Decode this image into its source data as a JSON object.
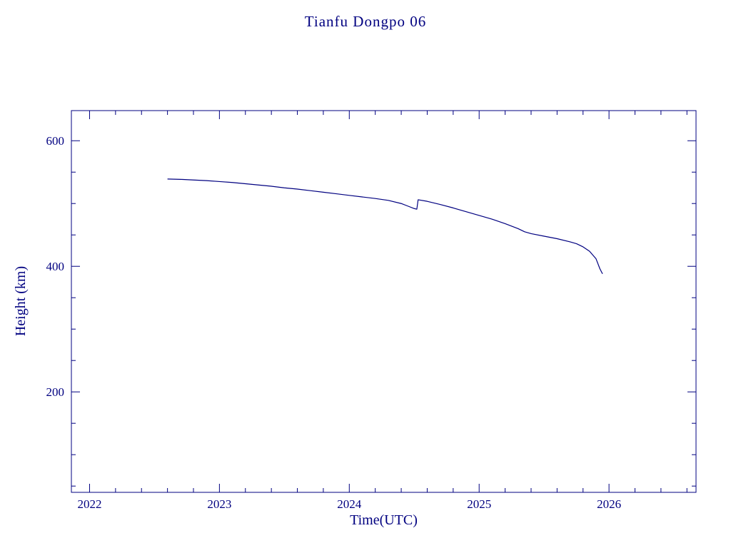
{
  "chart_data": {
    "type": "line",
    "title": "Tianfu Dongpo 06",
    "xlabel": "Time(UTC)",
    "ylabel": "Height (km)",
    "line_color": "#000080",
    "axis_color": "#000080",
    "background_color": "#ffffff",
    "grid": false,
    "legend": null,
    "xlim": [
      2021.86,
      2026.67
    ],
    "ylim": [
      40,
      648
    ],
    "x_major_ticks": [
      2022,
      2023,
      2024,
      2025,
      2026
    ],
    "x_tick_labels": [
      "2022",
      "2023",
      "2024",
      "2025",
      "2026"
    ],
    "x_minor_step": 0.2,
    "y_major_ticks": [
      200,
      400,
      600
    ],
    "y_tick_labels": [
      "200",
      "400",
      "600"
    ],
    "y_minor_step": 50,
    "series": [
      {
        "name": "height_km",
        "points": [
          [
            2022.6,
            539
          ],
          [
            2022.7,
            538.5
          ],
          [
            2022.8,
            537.5
          ],
          [
            2022.9,
            536.5
          ],
          [
            2023.0,
            535
          ],
          [
            2023.1,
            533.5
          ],
          [
            2023.2,
            531.5
          ],
          [
            2023.3,
            529.5
          ],
          [
            2023.4,
            527.5
          ],
          [
            2023.5,
            525
          ],
          [
            2023.6,
            523
          ],
          [
            2023.7,
            520.5
          ],
          [
            2023.8,
            518
          ],
          [
            2023.9,
            515.5
          ],
          [
            2024.0,
            513
          ],
          [
            2024.1,
            510.5
          ],
          [
            2024.2,
            508
          ],
          [
            2024.3,
            505
          ],
          [
            2024.4,
            500
          ],
          [
            2024.45,
            496
          ],
          [
            2024.5,
            492
          ],
          [
            2024.52,
            491
          ],
          [
            2024.53,
            506
          ],
          [
            2024.6,
            503.5
          ],
          [
            2024.7,
            498.5
          ],
          [
            2024.8,
            493
          ],
          [
            2024.9,
            487
          ],
          [
            2025.0,
            481
          ],
          [
            2025.1,
            475
          ],
          [
            2025.2,
            468
          ],
          [
            2025.3,
            460
          ],
          [
            2025.35,
            455
          ],
          [
            2025.4,
            452
          ],
          [
            2025.5,
            448
          ],
          [
            2025.6,
            444
          ],
          [
            2025.7,
            439
          ],
          [
            2025.75,
            436
          ],
          [
            2025.8,
            431
          ],
          [
            2025.85,
            424
          ],
          [
            2025.9,
            412
          ],
          [
            2025.93,
            396
          ],
          [
            2025.95,
            388
          ]
        ]
      }
    ]
  }
}
